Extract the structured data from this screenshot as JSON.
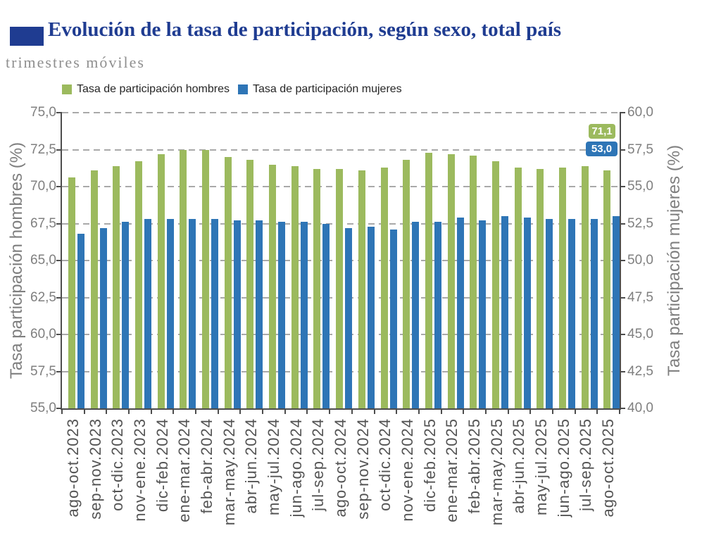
{
  "header": {
    "title": "Evolución de la tasa de participación, según sexo, total país",
    "subtitle": "trimestres móviles"
  },
  "colors": {
    "title_navy": "#1F3C91",
    "hombres_green": "#9CBA5E",
    "mujeres_blue": "#2E75B6"
  },
  "legend": [
    {
      "label": "Tasa de participación hombres",
      "color": "#9CBA5E"
    },
    {
      "label": "Tasa de participación mujeres",
      "color": "#2E75B6"
    }
  ],
  "chart_data": {
    "type": "bar",
    "categories": [
      "ago-oct.2023",
      "sep-nov.2023",
      "oct-dic.2023",
      "nov-ene.2023",
      "dic-feb.2024",
      "ene-mar.2024",
      "feb-abr.2024",
      "mar-may.2024",
      "abr-jun.2024",
      "may-jul.2024",
      "jun-ago.2024",
      "jul-sep.2024",
      "ago-oct.2024",
      "sep-nov.2024",
      "oct-dic.2024",
      "nov-ene.2024",
      "dic-feb.2025",
      "ene-mar.2025",
      "feb-abr.2025",
      "mar-may.2025",
      "abr-jun.2025",
      "may-jul.2025",
      "jun-ago.2025",
      "jul-sep.2025",
      "ago-oct.2025"
    ],
    "series": [
      {
        "name": "Tasa de participación hombres",
        "axis": "left",
        "color": "#9CBA5E",
        "values": [
          70.6,
          71.1,
          71.4,
          71.7,
          72.2,
          72.5,
          72.5,
          72.0,
          71.8,
          71.5,
          71.4,
          71.2,
          71.2,
          71.1,
          71.3,
          71.8,
          72.3,
          72.2,
          72.1,
          71.7,
          71.3,
          71.2,
          71.3,
          71.4,
          71.1
        ]
      },
      {
        "name": "Tasa de participación mujeres",
        "axis": "right",
        "color": "#2E75B6",
        "values": [
          51.8,
          52.2,
          52.6,
          52.8,
          52.8,
          52.8,
          52.8,
          52.7,
          52.7,
          52.6,
          52.6,
          52.5,
          52.2,
          52.3,
          52.1,
          52.6,
          52.6,
          52.9,
          52.7,
          53.0,
          52.9,
          52.8,
          52.8,
          52.8,
          53.0
        ]
      }
    ],
    "left_axis": {
      "label": "Tasa participación hombres (%)",
      "min": 55,
      "max": 75,
      "step": 2.5,
      "ticks": [
        "75,0",
        "72,5",
        "70,0",
        "67,5",
        "65,0",
        "62,5",
        "60,0",
        "57,5",
        "55,0"
      ]
    },
    "right_axis": {
      "label": "Tasa participación mujeres (%)",
      "min": 40,
      "max": 60,
      "step": 2.5,
      "ticks": [
        "60,0",
        "57,5",
        "55,0",
        "52,5",
        "50,0",
        "47,5",
        "45,0",
        "42,5",
        "40,0"
      ]
    },
    "grid": "dashed horizontal",
    "legend_position": "top-left",
    "annotations": [
      {
        "text": "71,1",
        "series": "hombres",
        "color": "#9CBA5E"
      },
      {
        "text": "53,0",
        "series": "mujeres",
        "color": "#2E75B6"
      }
    ]
  }
}
